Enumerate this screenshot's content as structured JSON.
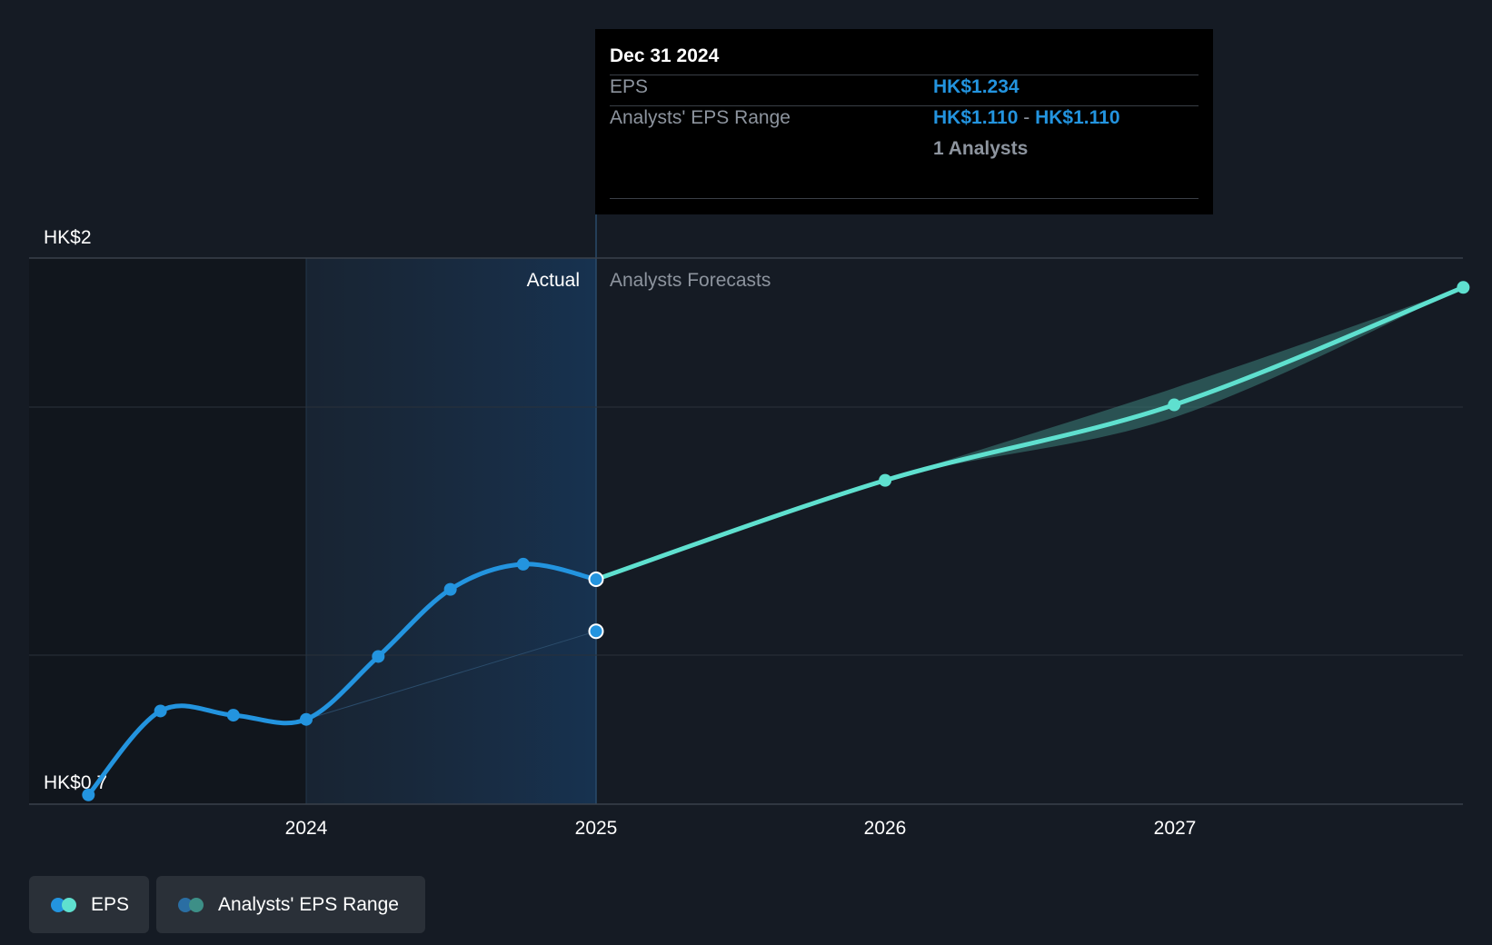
{
  "chart_data": {
    "type": "line",
    "title": "",
    "y_axis": {
      "top_label": "HK$2",
      "bottom_label": "HK$0.7",
      "ylim": [
        0.7,
        2.0
      ]
    },
    "x_axis": {
      "ticks": [
        "2024",
        "2025",
        "2026",
        "2027"
      ]
    },
    "regions": {
      "actual_label": "Actual",
      "forecast_label": "Analysts Forecasts"
    },
    "series": [
      {
        "name": "EPS",
        "kind": "actual",
        "color": "#2394df",
        "points": [
          {
            "x": "2023-03-31",
            "y": 0.72
          },
          {
            "x": "2023-06-30",
            "y": 0.92
          },
          {
            "x": "2023-09-30",
            "y": 0.91
          },
          {
            "x": "2023-12-31",
            "y": 0.9
          },
          {
            "x": "2024-03-31",
            "y": 1.05
          },
          {
            "x": "2024-06-30",
            "y": 1.21
          },
          {
            "x": "2024-09-30",
            "y": 1.27
          },
          {
            "x": "2024-12-31",
            "y": 1.234
          }
        ]
      },
      {
        "name": "EPS",
        "kind": "forecast",
        "color": "#5fe0cf",
        "points": [
          {
            "x": "2024-12-31",
            "y": 1.234
          },
          {
            "x": "2025-12-31",
            "y": 1.47
          },
          {
            "x": "2026-12-31",
            "y": 1.65
          },
          {
            "x": "2027-12-31",
            "y": 1.93
          }
        ]
      },
      {
        "name": "Analysts' EPS Range",
        "kind": "range",
        "color": "#3d7f7a",
        "points": [
          {
            "x": "2025-12-31",
            "low": 1.47,
            "high": 1.47
          },
          {
            "x": "2026-12-31",
            "low": 1.62,
            "high": 1.69
          },
          {
            "x": "2027-12-31",
            "low": 1.93,
            "high": 1.93
          }
        ]
      }
    ],
    "analyst_estimate_point": {
      "x": "2024-12-31",
      "y": 1.11
    },
    "legend": [
      {
        "label": "EPS",
        "colors": [
          "#2394df",
          "#5fe0cf"
        ]
      },
      {
        "label": "Analysts' EPS Range",
        "colors": [
          "#2a6ea3",
          "#3d8f87"
        ]
      }
    ],
    "legend_placement": "bottom-left"
  },
  "tooltip": {
    "date": "Dec 31 2024",
    "eps_label": "EPS",
    "eps_value": "HK$1.234",
    "range_label": "Analysts' EPS Range",
    "range_low": "HK$1.110",
    "range_separator": "-",
    "range_high": "HK$1.110",
    "analysts": "1 Analysts"
  }
}
